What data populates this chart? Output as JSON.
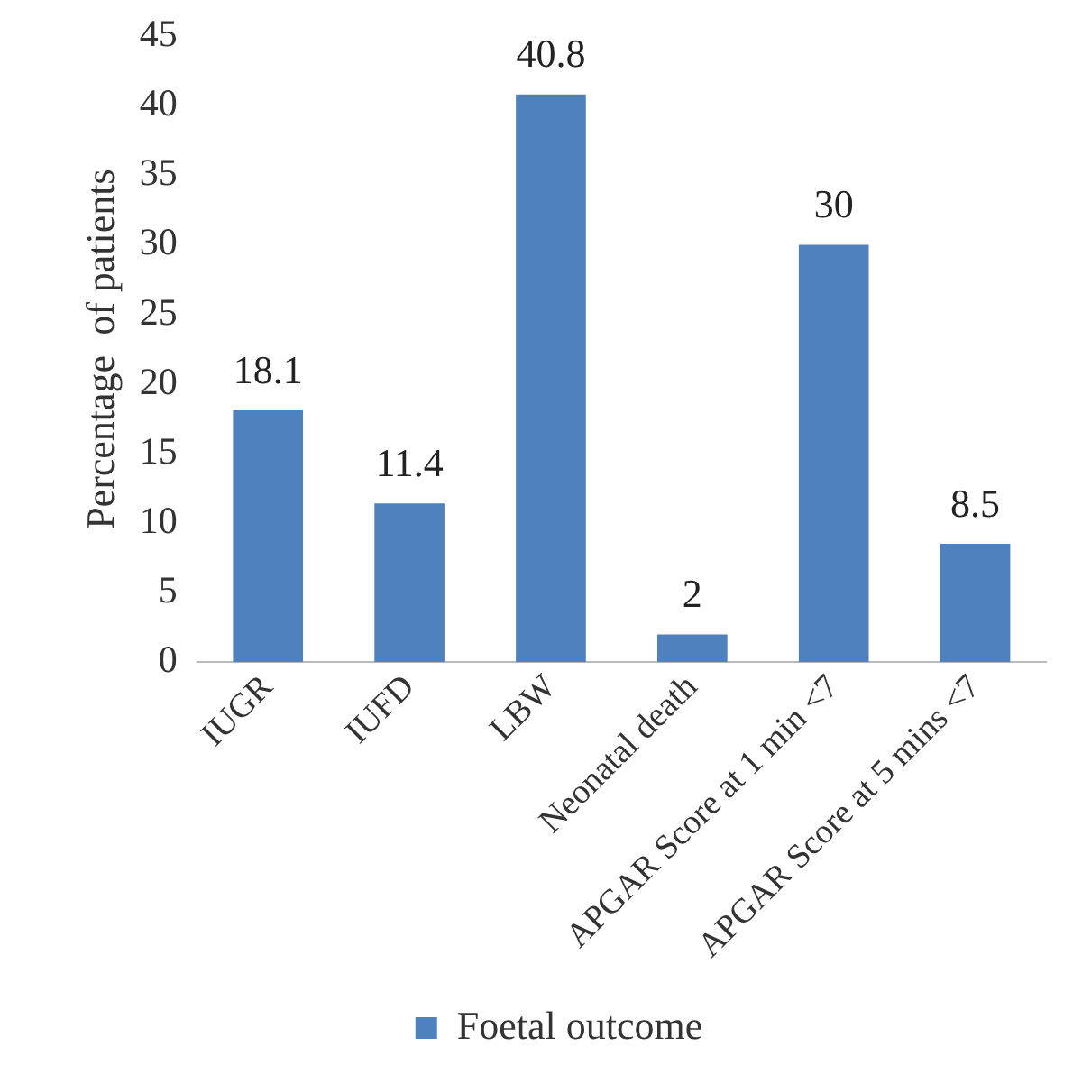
{
  "chart_data": {
    "type": "bar",
    "ylabel": "Percentage  of patients",
    "categories": [
      "IUGR",
      "IUFD",
      "LBW",
      "Neonatal death",
      "APGAR Score at 1 min <7",
      "APGAR Score at 5 mins <7"
    ],
    "series": [
      {
        "name": "Foetal outcome",
        "color": "#4f81bd",
        "values": [
          18.1,
          11.4,
          40.8,
          2,
          30,
          8.5
        ]
      }
    ],
    "ylim": [
      0,
      45
    ],
    "yticks": [
      0,
      5,
      10,
      15,
      20,
      25,
      30,
      35,
      40,
      45
    ],
    "grid": false,
    "legend": "bottom",
    "data_labels": true
  }
}
